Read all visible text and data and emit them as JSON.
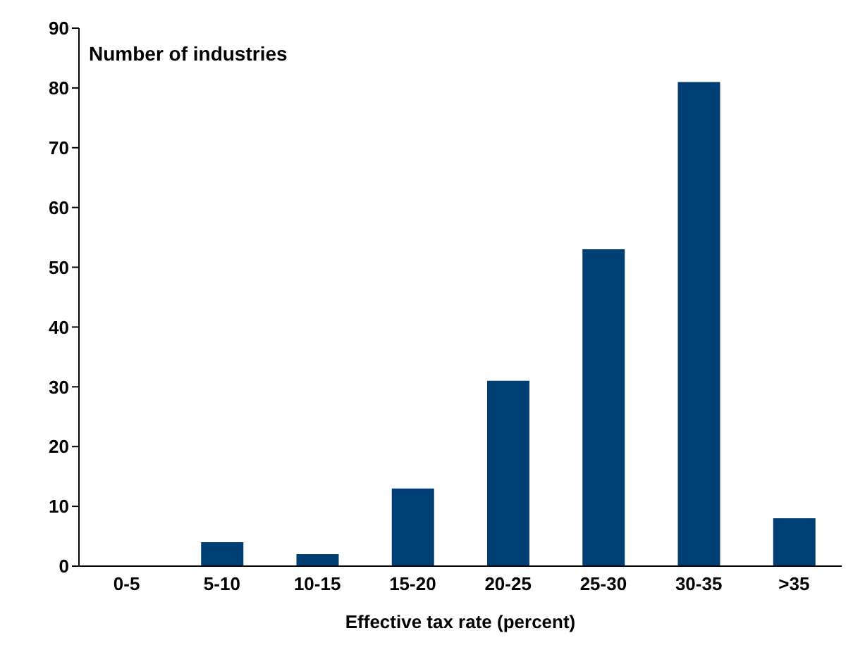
{
  "chart_data": {
    "type": "bar",
    "ylabel": "Number of industries",
    "xlabel": "Effective tax rate (percent)",
    "categories": [
      "0-5",
      "5-10",
      "10-15",
      "15-20",
      "20-25",
      "25-30",
      "30-35",
      ">35"
    ],
    "values": [
      0,
      4,
      2,
      13,
      31,
      53,
      81,
      8
    ],
    "color": "#003f73",
    "ylim": [
      0,
      90
    ],
    "yticks": [
      0,
      10,
      20,
      30,
      40,
      50,
      60,
      70,
      80,
      90
    ],
    "grid": false,
    "legend": false
  }
}
